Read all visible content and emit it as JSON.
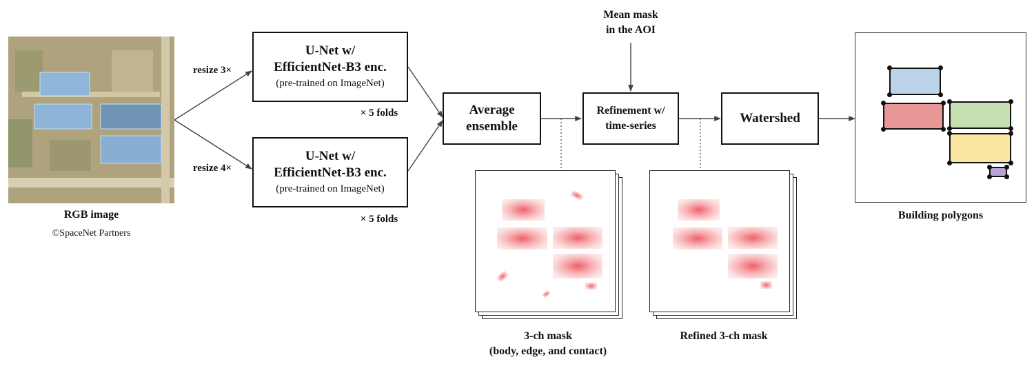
{
  "input": {
    "label": "RGB image",
    "credit": "©SpaceNet Partners"
  },
  "resize": {
    "top": "resize 3×",
    "bottom": "resize 4×"
  },
  "unet_top": {
    "line1": "U-Net w/",
    "line2": "EfficientNet-B3 enc.",
    "note": "(pre-trained on ImageNet)",
    "folds": "× 5 folds"
  },
  "unet_bottom": {
    "line1": "U-Net w/",
    "line2": "EfficientNet-B3 enc.",
    "note": "(pre-trained on ImageNet)",
    "folds": "× 5 folds"
  },
  "ensemble": {
    "line1": "Average",
    "line2": "ensemble"
  },
  "mean_mask": {
    "line1": "Mean mask",
    "line2": "in the AOI"
  },
  "refinement": {
    "line1": "Refinement w/",
    "line2": "time-series"
  },
  "watershed": {
    "label": "Watershed"
  },
  "mask": {
    "line1": "3-ch mask",
    "line2": "(body, edge, and contact)"
  },
  "refined_mask": {
    "label": "Refined 3-ch mask"
  },
  "output": {
    "label": "Building polygons"
  },
  "colors": {
    "poly_blue": "#bdd3ea",
    "poly_red": "#e89797",
    "poly_green": "#c6dfb1",
    "poly_yellow": "#fae6a0",
    "poly_purple": "#b9a3d6"
  }
}
